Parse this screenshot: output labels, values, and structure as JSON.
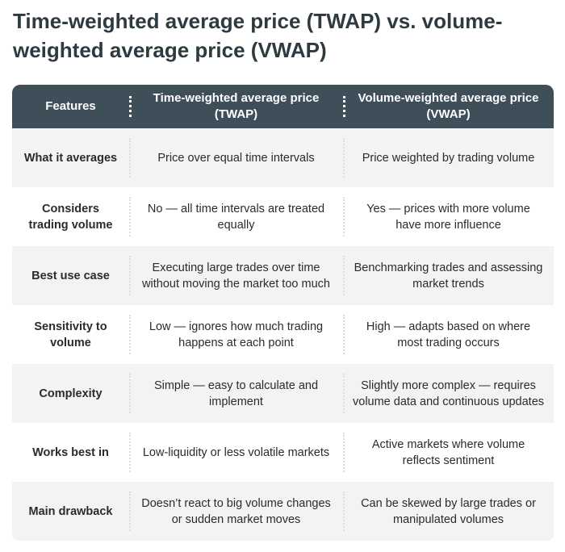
{
  "title": "Time-weighted average price (TWAP) vs. volume-weighted average price (VWAP)",
  "colors": {
    "header_bg": "#3f4f5a",
    "row_alt_bg": "#f3f3f3"
  },
  "table": {
    "headers": [
      "Features",
      "Time-weighted average price (TWAP)",
      "Volume-weighted average price (VWAP)"
    ],
    "rows": [
      [
        "What it averages",
        "Price over equal time intervals",
        "Price weighted by trading volume"
      ],
      [
        "Considers trading volume",
        "No — all time intervals are treated equally",
        "Yes — prices with more volume have more influence"
      ],
      [
        "Best use case",
        "Executing large trades over time without moving the market too much",
        "Benchmarking trades and assessing market trends"
      ],
      [
        "Sensitivity to volume",
        "Low — ignores how much trading happens at each point",
        "High — adapts based on where most trading occurs"
      ],
      [
        "Complexity",
        "Simple — easy to calculate and implement",
        "Slightly more complex — requires volume data and continuous updates"
      ],
      [
        "Works best in",
        "Low-liquidity or less volatile markets",
        "Active markets where volume reflects sentiment"
      ],
      [
        "Main drawback",
        "Doesn’t react to big volume changes or sudden market moves",
        "Can be skewed by large trades or manipulated volumes"
      ]
    ]
  }
}
